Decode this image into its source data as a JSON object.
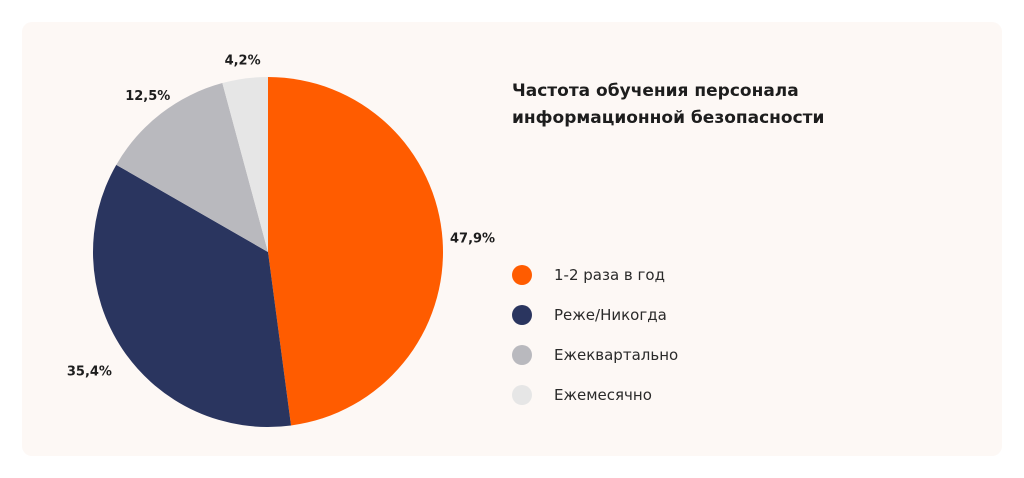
{
  "chart_data": {
    "type": "pie",
    "title_lines": [
      "Частота обучения персонала",
      "информационной безопасности"
    ],
    "slices": [
      {
        "label": "1-2 раза в год",
        "value": 47.9,
        "display": "47,9%",
        "color": "#ff5c00"
      },
      {
        "label": "Реже/Никогда",
        "value": 35.4,
        "display": "35,4%",
        "color": "#2a355f"
      },
      {
        "label": "Ежеквартально",
        "value": 12.5,
        "display": "12,5%",
        "color": "#b9b9be"
      },
      {
        "label": "Ежемесячно",
        "value": 4.2,
        "display": "4,2%",
        "color": "#e6e6e6"
      }
    ],
    "legend_position": "right"
  }
}
